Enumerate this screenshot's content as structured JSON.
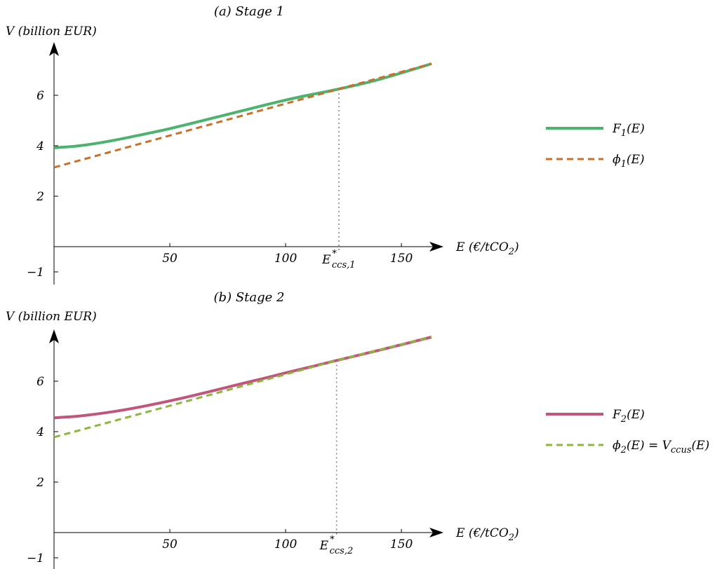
{
  "chart_data": [
    {
      "type": "line",
      "title": "(a) Stage 1",
      "ylabel": "V (billion EUR)",
      "xlabel": "E (€/tCO₂)",
      "xlim": [
        0,
        163
      ],
      "ylim": [
        -1.5,
        7.8
      ],
      "x_ticks": [
        50,
        100,
        150
      ],
      "y_ticks": [
        -1,
        2,
        4,
        6
      ],
      "threshold": {
        "x": 123,
        "label_main": "E",
        "label_sup": "*",
        "label_sub": "ccs,1"
      },
      "series": [
        {
          "name": "F",
          "name_sub": "1",
          "name_suffix": "(E)",
          "style": "solid",
          "color": "#4cb36f",
          "x": [
            0,
            10,
            20,
            30,
            40,
            50,
            60,
            70,
            80,
            90,
            100,
            110,
            123,
            140,
            163
          ],
          "y": [
            3.92,
            3.99,
            4.12,
            4.29,
            4.48,
            4.68,
            4.9,
            5.13,
            5.36,
            5.59,
            5.81,
            6.01,
            6.25,
            6.62,
            7.25
          ]
        },
        {
          "name": "ϕ",
          "name_sub": "1",
          "name_suffix": "(E)",
          "style": "dashed",
          "color": "#c8702a",
          "x": [
            0,
            123,
            163
          ],
          "y": [
            3.14,
            6.25,
            7.25
          ]
        }
      ]
    },
    {
      "type": "line",
      "title": "(b) Stage 2",
      "ylabel": "V (billion EUR)",
      "xlabel": "E (€/tCO₂)",
      "xlim": [
        0,
        163
      ],
      "ylim": [
        -1.5,
        7.8
      ],
      "x_ticks": [
        50,
        100,
        150
      ],
      "y_ticks": [
        -1,
        2,
        4,
        6
      ],
      "threshold": {
        "x": 122,
        "label_main": "E",
        "label_sup": "*",
        "label_sub": "ccs,2"
      },
      "series": [
        {
          "name": "F",
          "name_sub": "2",
          "name_suffix": "(E)",
          "style": "solid",
          "color": "#c2557a",
          "x": [
            0,
            10,
            20,
            30,
            40,
            50,
            60,
            70,
            80,
            90,
            100,
            110,
            122,
            140,
            163
          ],
          "y": [
            4.55,
            4.61,
            4.72,
            4.86,
            5.03,
            5.22,
            5.43,
            5.65,
            5.88,
            6.1,
            6.33,
            6.55,
            6.82,
            7.22,
            7.75
          ]
        },
        {
          "name": "ϕ",
          "name_sub": "2",
          "name_suffix": "(E) = V",
          "name_sub2": "ccus",
          "name_suffix2": "(E)",
          "style": "dashed",
          "color": "#8db63c",
          "x": [
            0,
            122,
            163
          ],
          "y": [
            3.78,
            6.82,
            7.75
          ]
        }
      ]
    }
  ]
}
